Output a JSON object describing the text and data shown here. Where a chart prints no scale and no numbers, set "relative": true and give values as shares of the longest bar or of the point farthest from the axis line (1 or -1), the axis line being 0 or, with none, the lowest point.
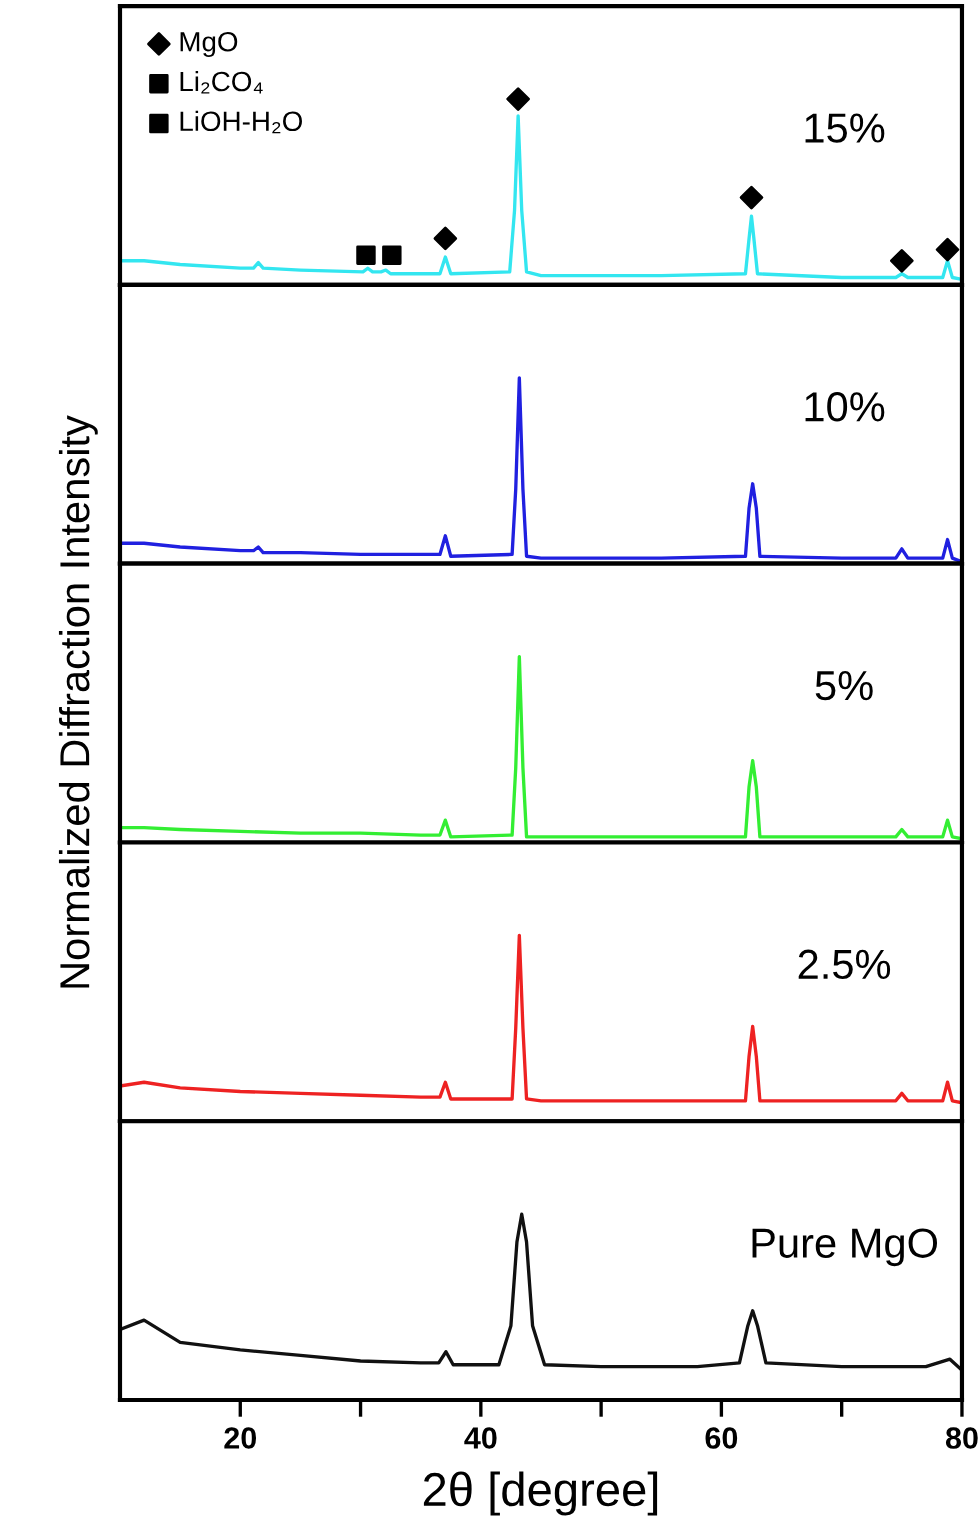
{
  "chart_data": [
    {
      "type": "line",
      "relative": true,
      "xlim": [
        10,
        80
      ],
      "tick_labels": false,
      "legend": "top left",
      "annotations": [
        "15%"
      ],
      "series": [
        {
          "name": null,
          "color": "#33e6f0",
          "x": [
            10,
            12,
            15,
            20,
            21.1,
            21.5,
            21.9,
            25,
            30.2,
            30.6,
            31.0,
            31.7,
            32.1,
            32.5,
            35,
            36.6,
            37.05,
            37.5,
            42.4,
            42.8,
            43.1,
            43.4,
            43.8,
            45,
            55,
            62.0,
            62.3,
            62.5,
            62.7,
            63.0,
            70,
            74.5,
            75.0,
            75.5,
            78.4,
            78.8,
            79.2,
            80
          ],
          "values": [
            0.13,
            0.13,
            0.11,
            0.09,
            0.09,
            0.12,
            0.09,
            0.08,
            0.07,
            0.09,
            0.07,
            0.07,
            0.08,
            0.06,
            0.06,
            0.06,
            0.15,
            0.06,
            0.07,
            0.4,
            0.91,
            0.4,
            0.07,
            0.05,
            0.05,
            0.06,
            0.25,
            0.37,
            0.25,
            0.06,
            0.04,
            0.04,
            0.06,
            0.04,
            0.04,
            0.13,
            0.04,
            0.03
          ]
        },
        {
          "name": "MgO",
          "type": "scatter",
          "marker": "diamond",
          "color": "#000000",
          "x": [
            37.05,
            43.1,
            62.5,
            75.0,
            78.8
          ],
          "values": [
            0.25,
            1.0,
            0.47,
            0.13,
            0.19
          ]
        },
        {
          "name": "Li₂CO₄",
          "type": "scatter",
          "marker": "square",
          "color": "#000000",
          "x": [
            32.6
          ],
          "values": [
            0.16
          ]
        },
        {
          "name": "LiOH-H₂O",
          "type": "scatter",
          "marker": "square",
          "color": "#000000",
          "x": [
            30.45
          ],
          "values": [
            0.16
          ]
        }
      ]
    },
    {
      "type": "line",
      "relative": true,
      "xlim": [
        10,
        80
      ],
      "tick_labels": false,
      "annotations": [
        "10%"
      ],
      "series": [
        {
          "color": "#2020e0",
          "x": [
            10,
            12,
            15,
            20,
            21.1,
            21.5,
            21.9,
            25,
            30,
            35,
            36.6,
            37.05,
            37.5,
            42.6,
            42.9,
            43.2,
            43.5,
            43.8,
            45,
            55,
            62.0,
            62.3,
            62.6,
            62.9,
            63.2,
            70,
            74.5,
            75.0,
            75.5,
            78.4,
            78.8,
            79.2,
            80
          ],
          "values": [
            0.11,
            0.11,
            0.09,
            0.07,
            0.07,
            0.09,
            0.06,
            0.06,
            0.05,
            0.05,
            0.05,
            0.15,
            0.04,
            0.05,
            0.4,
            1.0,
            0.4,
            0.04,
            0.03,
            0.03,
            0.04,
            0.3,
            0.43,
            0.3,
            0.04,
            0.03,
            0.03,
            0.08,
            0.03,
            0.03,
            0.13,
            0.03,
            0.01
          ]
        }
      ]
    },
    {
      "type": "line",
      "relative": true,
      "xlim": [
        10,
        80
      ],
      "tick_labels": false,
      "ylabel": "Normalized Diffraction Intensity",
      "annotations": [
        "5%"
      ],
      "series": [
        {
          "color": "#33ee33",
          "x": [
            10,
            12,
            15,
            20,
            25,
            30,
            35,
            36.6,
            37.05,
            37.5,
            42.6,
            42.9,
            43.2,
            43.5,
            43.8,
            45,
            55,
            62.0,
            62.3,
            62.6,
            62.9,
            63.2,
            70,
            74.5,
            75.0,
            75.5,
            78.4,
            78.8,
            79.2,
            80
          ],
          "values": [
            0.08,
            0.08,
            0.07,
            0.06,
            0.05,
            0.05,
            0.04,
            0.04,
            0.12,
            0.03,
            0.04,
            0.4,
            1.0,
            0.4,
            0.03,
            0.03,
            0.03,
            0.03,
            0.3,
            0.44,
            0.3,
            0.03,
            0.03,
            0.03,
            0.07,
            0.03,
            0.03,
            0.12,
            0.03,
            0.02
          ]
        }
      ]
    },
    {
      "type": "line",
      "relative": true,
      "xlim": [
        10,
        80
      ],
      "tick_labels": false,
      "annotations": [
        "2.5%"
      ],
      "series": [
        {
          "color": "#ee2222",
          "x": [
            10,
            12,
            15,
            20,
            25,
            30,
            35,
            36.6,
            37.05,
            37.5,
            42.6,
            42.9,
            43.2,
            43.5,
            43.8,
            45,
            55,
            62.0,
            62.3,
            62.6,
            62.9,
            63.2,
            70,
            74.5,
            75.0,
            75.5,
            78.4,
            78.8,
            79.2,
            80
          ],
          "values": [
            0.19,
            0.21,
            0.18,
            0.16,
            0.15,
            0.14,
            0.13,
            0.13,
            0.21,
            0.12,
            0.12,
            0.5,
            1.0,
            0.5,
            0.12,
            0.11,
            0.11,
            0.11,
            0.35,
            0.51,
            0.35,
            0.11,
            0.11,
            0.11,
            0.15,
            0.11,
            0.11,
            0.21,
            0.11,
            0.1
          ]
        }
      ]
    },
    {
      "type": "line",
      "relative": true,
      "xlim": [
        10,
        80
      ],
      "tick_labels": "x",
      "xticks": [
        20,
        {
          "value": 30,
          "label": null
        },
        40,
        {
          "value": 50,
          "label": null
        },
        60,
        {
          "value": 70,
          "label": null
        },
        80
      ],
      "xlabel": "2θ [degree]",
      "annotations": [
        "Pure MgO"
      ],
      "series": [
        {
          "color": "#111111",
          "x": [
            10,
            12,
            15,
            20,
            25,
            30,
            35,
            36.5,
            37.1,
            37.7,
            41.5,
            42.5,
            43.0,
            43.4,
            43.8,
            44.3,
            45.3,
            50,
            55,
            58,
            61.5,
            62.2,
            62.6,
            63.0,
            63.7,
            70,
            75,
            77,
            79,
            80
          ],
          "values": [
            0.38,
            0.43,
            0.31,
            0.27,
            0.24,
            0.21,
            0.2,
            0.2,
            0.26,
            0.19,
            0.19,
            0.4,
            0.85,
            1.0,
            0.85,
            0.4,
            0.19,
            0.18,
            0.18,
            0.18,
            0.2,
            0.4,
            0.48,
            0.4,
            0.2,
            0.18,
            0.18,
            0.18,
            0.22,
            0.16
          ]
        }
      ]
    }
  ]
}
